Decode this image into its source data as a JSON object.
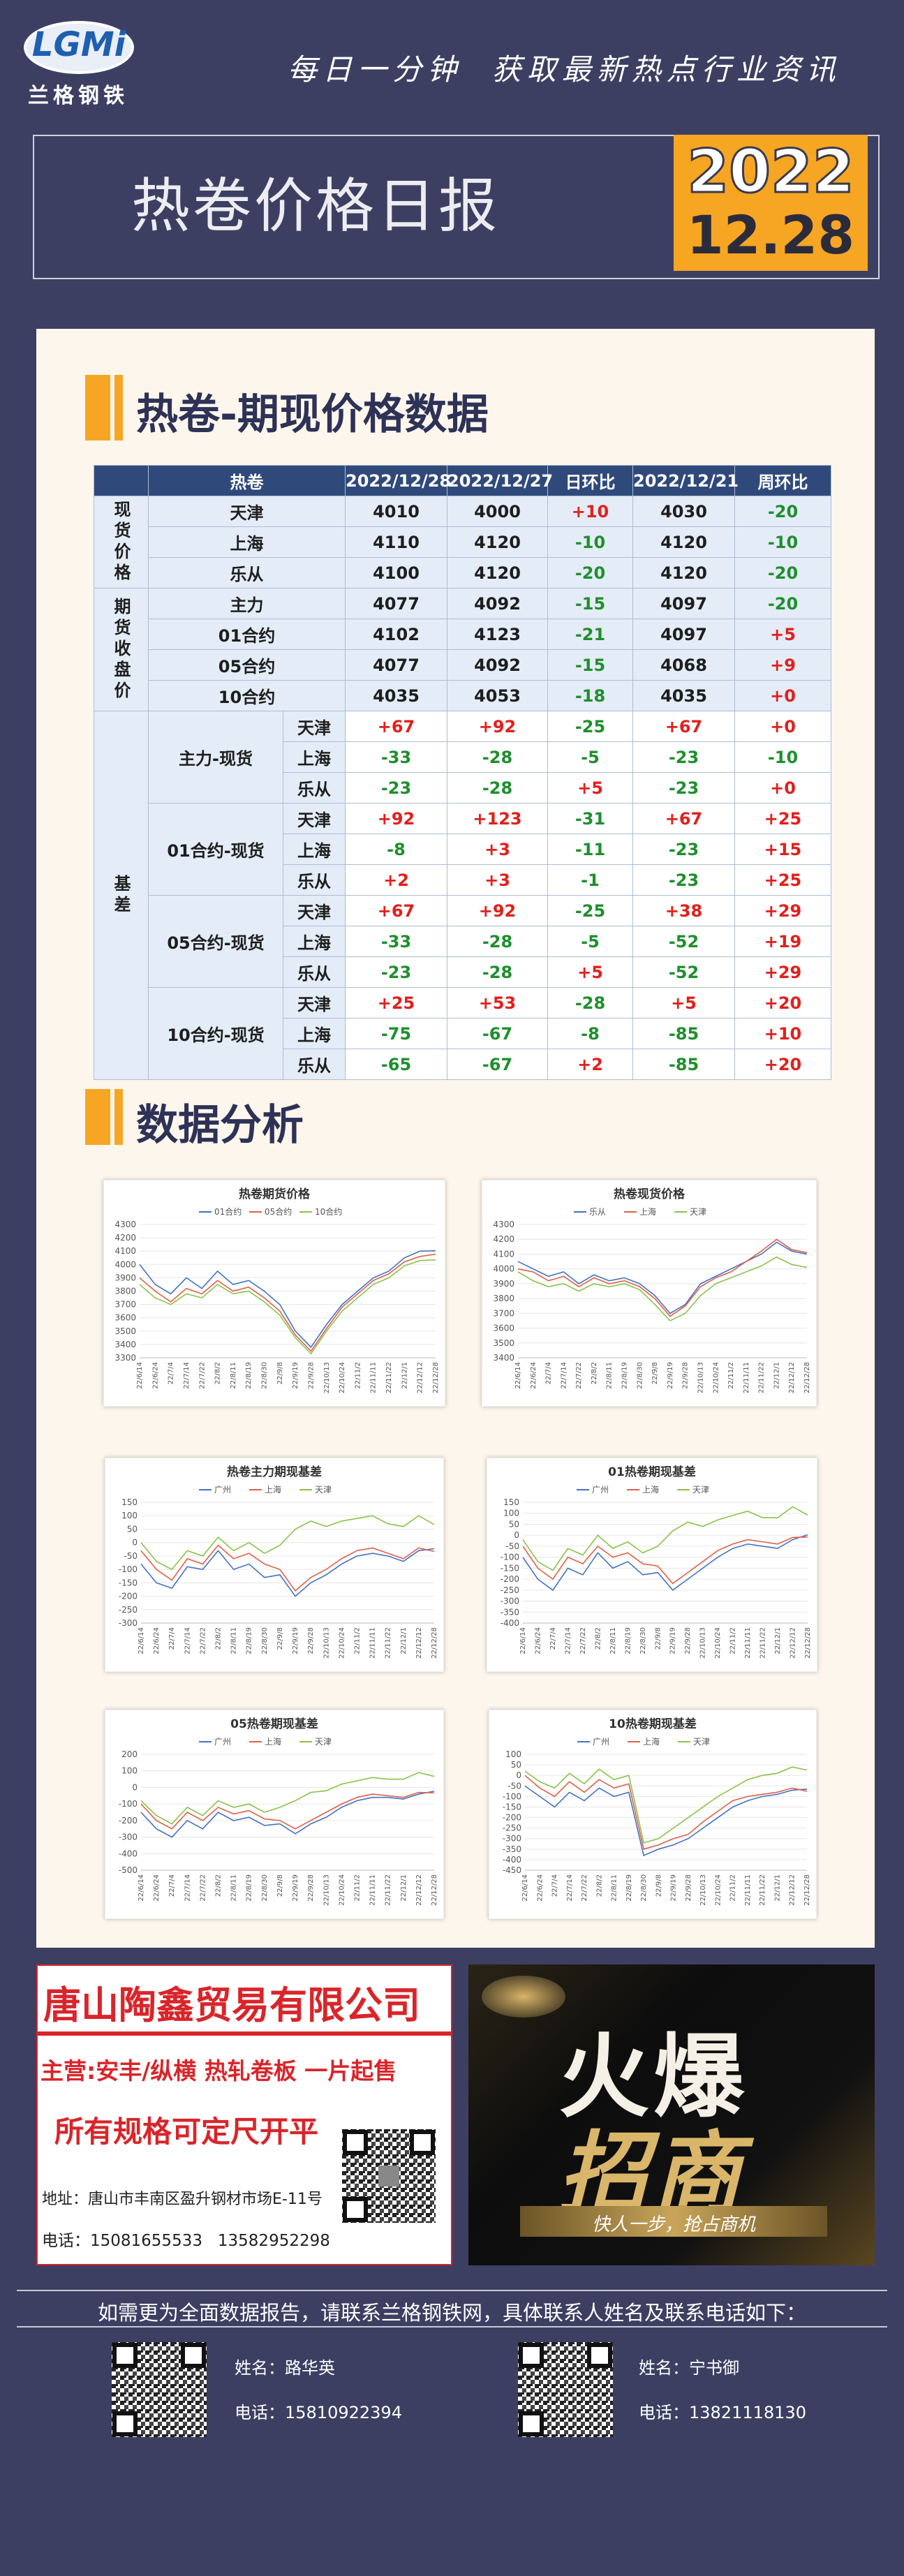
{
  "header": {
    "logo": "LGMi",
    "brand": "兰格钢铁",
    "slogan": "每日一分钟  获取最新热点行业资讯",
    "title": "热卷价格日报",
    "year": "2022",
    "date": "12.28"
  },
  "table": {
    "title": "热卷-期现价格数据",
    "header": [
      "热卷",
      "2022/12/28",
      "2022/12/27",
      "日环比",
      "2022/12/21",
      "周环比"
    ],
    "spot": {
      "label": "现货价格",
      "rows": [
        {
          "name": "天津",
          "values": [
            "4010",
            "4000",
            "+10",
            "4030",
            "-20"
          ]
        },
        {
          "name": "上海",
          "values": [
            "4110",
            "4120",
            "-10",
            "4120",
            "-10"
          ]
        },
        {
          "name": "乐从",
          "values": [
            "4100",
            "4120",
            "-20",
            "4120",
            "-20"
          ]
        }
      ]
    },
    "futures": {
      "label": "期货收盘价",
      "rows": [
        {
          "name": "主力",
          "values": [
            "4077",
            "4092",
            "-15",
            "4097",
            "-20"
          ]
        },
        {
          "name": "01合约",
          "values": [
            "4102",
            "4123",
            "-21",
            "4097",
            "+5"
          ]
        },
        {
          "name": "05合约",
          "values": [
            "4077",
            "4092",
            "-15",
            "4068",
            "+9"
          ]
        },
        {
          "name": "10合约",
          "values": [
            "4035",
            "4053",
            "-18",
            "4035",
            "+0"
          ]
        }
      ]
    },
    "basis": {
      "label": "基差",
      "groups": [
        {
          "name": "主力-现货",
          "rows": [
            {
              "name": "天津",
              "values": [
                "+67",
                "+92",
                "-25",
                "+67",
                "+0"
              ]
            },
            {
              "name": "上海",
              "values": [
                "-33",
                "-28",
                "-5",
                "-23",
                "-10"
              ]
            },
            {
              "name": "乐从",
              "values": [
                "-23",
                "-28",
                "+5",
                "-23",
                "+0"
              ]
            }
          ]
        },
        {
          "name": "01合约-现货",
          "rows": [
            {
              "name": "天津",
              "values": [
                "+92",
                "+123",
                "-31",
                "+67",
                "+25"
              ]
            },
            {
              "name": "上海",
              "values": [
                "-8",
                "+3",
                "-11",
                "-23",
                "+15"
              ]
            },
            {
              "name": "乐从",
              "values": [
                "+2",
                "+3",
                "-1",
                "-23",
                "+25"
              ]
            }
          ]
        },
        {
          "name": "05合约-现货",
          "rows": [
            {
              "name": "天津",
              "values": [
                "+67",
                "+92",
                "-25",
                "+38",
                "+29"
              ]
            },
            {
              "name": "上海",
              "values": [
                "-33",
                "-28",
                "-5",
                "-52",
                "+19"
              ]
            },
            {
              "name": "乐从",
              "values": [
                "-23",
                "-28",
                "+5",
                "-52",
                "+29"
              ]
            }
          ]
        },
        {
          "name": "10合约-现货",
          "rows": [
            {
              "name": "天津",
              "values": [
                "+25",
                "+53",
                "-28",
                "+5",
                "+20"
              ]
            },
            {
              "name": "上海",
              "values": [
                "-75",
                "-67",
                "-8",
                "-85",
                "+10"
              ]
            },
            {
              "name": "乐从",
              "values": [
                "-65",
                "-67",
                "+2",
                "-85",
                "+20"
              ]
            }
          ]
        }
      ]
    }
  },
  "analysis_title": "数据分析",
  "chart_data": [
    {
      "type": "line",
      "title": "热卷期货价格",
      "grid": true,
      "categories": [
        "22/6/14",
        "22/6/24",
        "22/7/4",
        "22/7/14",
        "22/7/22",
        "22/8/2",
        "22/8/11",
        "22/8/19",
        "22/8/30",
        "22/9/8",
        "22/9/19",
        "22/9/28",
        "22/10/13",
        "22/10/24",
        "22/11/2",
        "22/11/11",
        "22/11/22",
        "22/12/1",
        "22/12/12",
        "22/12/28"
      ],
      "ylim": [
        3300,
        4300
      ],
      "yticks": [
        3300,
        3400,
        3500,
        3600,
        3700,
        3800,
        3900,
        4000,
        4100,
        4200,
        4300
      ],
      "series": [
        {
          "name": "01合约",
          "color": "#4472c4",
          "values": [
            4000,
            3850,
            3780,
            3900,
            3820,
            3950,
            3850,
            3880,
            3800,
            3700,
            3500,
            3380,
            3550,
            3700,
            3800,
            3900,
            3950,
            4050,
            4100,
            4102
          ]
        },
        {
          "name": "05合约",
          "color": "#e0604a",
          "values": [
            3900,
            3800,
            3720,
            3820,
            3780,
            3880,
            3800,
            3830,
            3750,
            3650,
            3470,
            3350,
            3520,
            3680,
            3780,
            3880,
            3930,
            4020,
            4060,
            4077
          ]
        },
        {
          "name": "10合约",
          "color": "#8bc34a",
          "values": [
            3850,
            3750,
            3700,
            3780,
            3750,
            3850,
            3780,
            3800,
            3720,
            3620,
            3450,
            3330,
            3500,
            3650,
            3750,
            3850,
            3900,
            3990,
            4030,
            4035
          ]
        }
      ]
    },
    {
      "type": "line",
      "title": "热卷现货价格",
      "grid": true,
      "categories": [
        "22/6/14",
        "22/6/24",
        "22/7/4",
        "22/7/14",
        "22/7/22",
        "22/8/2",
        "22/8/11",
        "22/8/19",
        "22/8/30",
        "22/9/8",
        "22/9/19",
        "22/9/28",
        "22/10/13",
        "22/10/24",
        "22/11/2",
        "22/11/11",
        "22/11/22",
        "22/12/1",
        "22/12/12",
        "22/12/28"
      ],
      "ylim": [
        3400,
        4300
      ],
      "yticks": [
        3400,
        3500,
        3600,
        3700,
        3800,
        3900,
        4000,
        4100,
        4200,
        4300
      ],
      "series": [
        {
          "name": "乐从",
          "color": "#4472c4",
          "values": [
            4050,
            4000,
            3950,
            3980,
            3900,
            3960,
            3920,
            3940,
            3900,
            3820,
            3700,
            3760,
            3900,
            3950,
            4000,
            4050,
            4100,
            4180,
            4120,
            4100
          ]
        },
        {
          "name": "上海",
          "color": "#e0604a",
          "values": [
            4000,
            3980,
            3920,
            3950,
            3880,
            3940,
            3900,
            3920,
            3880,
            3800,
            3680,
            3750,
            3880,
            3940,
            3980,
            4050,
            4120,
            4200,
            4130,
            4110
          ]
        },
        {
          "name": "天津",
          "color": "#8bc34a",
          "values": [
            3980,
            3920,
            3880,
            3900,
            3850,
            3900,
            3880,
            3900,
            3860,
            3760,
            3650,
            3700,
            3820,
            3900,
            3940,
            3980,
            4020,
            4080,
            4030,
            4010
          ]
        }
      ]
    },
    {
      "type": "line",
      "title": "热卷主力期现基差",
      "grid": true,
      "categories": [
        "22/6/14",
        "22/6/24",
        "22/7/4",
        "22/7/14",
        "22/7/22",
        "22/8/2",
        "22/8/11",
        "22/8/19",
        "22/8/30",
        "22/9/8",
        "22/9/19",
        "22/9/28",
        "22/10/13",
        "22/10/24",
        "22/11/2",
        "22/11/11",
        "22/11/22",
        "22/12/1",
        "22/12/12",
        "22/12/28"
      ],
      "ylim": [
        -300,
        150
      ],
      "yticks": [
        -300,
        -250,
        -200,
        -150,
        -100,
        -50,
        0,
        50,
        100,
        150
      ],
      "series": [
        {
          "name": "广州",
          "color": "#4472c4",
          "values": [
            -80,
            -150,
            -170,
            -90,
            -100,
            -30,
            -100,
            -80,
            -130,
            -120,
            -200,
            -150,
            -120,
            -80,
            -50,
            -40,
            -50,
            -70,
            -30,
            -23
          ]
        },
        {
          "name": "上海",
          "color": "#e0604a",
          "values": [
            -30,
            -100,
            -140,
            -60,
            -80,
            -10,
            -60,
            -40,
            -80,
            -100,
            -180,
            -130,
            -100,
            -60,
            -30,
            -20,
            -40,
            -60,
            -20,
            -33
          ]
        },
        {
          "name": "天津",
          "color": "#8bc34a",
          "values": [
            0,
            -70,
            -100,
            -30,
            -50,
            20,
            -30,
            0,
            -40,
            -10,
            50,
            80,
            60,
            80,
            90,
            100,
            70,
            60,
            100,
            67
          ]
        }
      ]
    },
    {
      "type": "line",
      "title": "01热卷期现基差",
      "grid": true,
      "categories": [
        "22/6/14",
        "22/6/24",
        "22/7/4",
        "22/7/14",
        "22/7/22",
        "22/8/2",
        "22/8/11",
        "22/8/19",
        "22/8/30",
        "22/9/8",
        "22/9/19",
        "22/9/28",
        "22/10/13",
        "22/10/24",
        "22/11/2",
        "22/11/11",
        "22/11/22",
        "22/12/1",
        "22/12/12",
        "22/12/28"
      ],
      "ylim": [
        -400,
        150
      ],
      "yticks": [
        -400,
        -350,
        -300,
        -250,
        -200,
        -150,
        -100,
        -50,
        0,
        50,
        100,
        150
      ],
      "series": [
        {
          "name": "广州",
          "color": "#4472c4",
          "values": [
            -100,
            -200,
            -250,
            -150,
            -180,
            -80,
            -150,
            -120,
            -180,
            -170,
            -250,
            -200,
            -150,
            -100,
            -60,
            -40,
            -50,
            -60,
            -20,
            2
          ]
        },
        {
          "name": "上海",
          "color": "#e0604a",
          "values": [
            -50,
            -150,
            -200,
            -100,
            -130,
            -50,
            -100,
            -80,
            -130,
            -140,
            -220,
            -170,
            -120,
            -70,
            -40,
            -20,
            -30,
            -40,
            -10,
            -8
          ]
        },
        {
          "name": "天津",
          "color": "#8bc34a",
          "values": [
            -20,
            -120,
            -160,
            -60,
            -90,
            0,
            -60,
            -30,
            -80,
            -50,
            20,
            60,
            40,
            70,
            90,
            110,
            80,
            80,
            130,
            92
          ]
        }
      ]
    },
    {
      "type": "line",
      "title": "05热卷期现基差",
      "grid": true,
      "categories": [
        "22/6/14",
        "22/6/24",
        "22/7/4",
        "22/7/14",
        "22/7/22",
        "22/8/2",
        "22/8/11",
        "22/8/19",
        "22/8/30",
        "22/9/8",
        "22/9/19",
        "22/9/28",
        "22/10/13",
        "22/10/24",
        "22/11/2",
        "22/11/11",
        "22/11/22",
        "22/12/1",
        "22/12/12",
        "22/12/28"
      ],
      "ylim": [
        -500,
        200
      ],
      "yticks": [
        -500,
        -400,
        -300,
        -200,
        -100,
        0,
        100,
        200
      ],
      "series": [
        {
          "name": "广州",
          "color": "#4472c4",
          "values": [
            -150,
            -250,
            -300,
            -200,
            -250,
            -150,
            -200,
            -180,
            -230,
            -220,
            -280,
            -220,
            -180,
            -120,
            -80,
            -60,
            -60,
            -70,
            -40,
            -23
          ]
        },
        {
          "name": "上海",
          "color": "#e0604a",
          "values": [
            -100,
            -200,
            -250,
            -150,
            -200,
            -120,
            -160,
            -140,
            -190,
            -200,
            -250,
            -200,
            -150,
            -100,
            -60,
            -40,
            -50,
            -60,
            -30,
            -33
          ]
        },
        {
          "name": "天津",
          "color": "#8bc34a",
          "values": [
            -80,
            -170,
            -220,
            -120,
            -170,
            -80,
            -120,
            -100,
            -150,
            -120,
            -80,
            -30,
            -20,
            20,
            40,
            60,
            50,
            50,
            90,
            67
          ]
        }
      ]
    },
    {
      "type": "line",
      "title": "10热卷期现基差",
      "grid": true,
      "categories": [
        "22/6/14",
        "22/6/24",
        "22/7/4",
        "22/7/14",
        "22/7/22",
        "22/8/2",
        "22/8/11",
        "22/8/19",
        "22/8/30",
        "22/9/8",
        "22/9/19",
        "22/9/28",
        "22/10/13",
        "22/10/24",
        "22/11/2",
        "22/11/11",
        "22/11/22",
        "22/12/1",
        "22/12/12",
        "22/12/28"
      ],
      "ylim": [
        -450,
        100
      ],
      "yticks": [
        -450,
        -400,
        -350,
        -300,
        -250,
        -200,
        -150,
        -100,
        -50,
        0,
        50,
        100
      ],
      "series": [
        {
          "name": "广州",
          "color": "#4472c4",
          "values": [
            -50,
            -100,
            -150,
            -80,
            -120,
            -60,
            -100,
            -80,
            -380,
            -350,
            -330,
            -300,
            -250,
            -200,
            -150,
            -120,
            -100,
            -90,
            -70,
            -65
          ]
        },
        {
          "name": "上海",
          "color": "#e0604a",
          "values": [
            0,
            -60,
            -100,
            -30,
            -80,
            -20,
            -60,
            -40,
            -350,
            -330,
            -300,
            -280,
            -220,
            -170,
            -120,
            -100,
            -90,
            -80,
            -60,
            -75
          ]
        },
        {
          "name": "天津",
          "color": "#8bc34a",
          "values": [
            20,
            -30,
            -60,
            10,
            -40,
            30,
            -20,
            0,
            -320,
            -300,
            -250,
            -200,
            -150,
            -100,
            -60,
            -20,
            0,
            10,
            40,
            25
          ]
        }
      ]
    }
  ],
  "ads": {
    "left": {
      "company": "唐山陶鑫贸易有限公司",
      "business": "主营:安丰/纵横 热轧卷板 一片起售",
      "spec": "所有规格可定尺开平",
      "address": "地址：唐山市丰南区盈升钢材市场E-11号",
      "phone": "电话：15081655533   13582952298"
    },
    "right": {
      "line1": "火爆",
      "line2": "招商",
      "slogan": "快人一步，抢占商机"
    }
  },
  "footer": {
    "note": "如需更为全面数据报告，请联系兰格钢铁网，具体联系人姓名及联系电话如下：",
    "contacts": [
      {
        "name": "姓名：路华英",
        "phone": "电话：15810922394"
      },
      {
        "name": "姓名：宁书御",
        "phone": "电话：13821118130"
      }
    ]
  }
}
